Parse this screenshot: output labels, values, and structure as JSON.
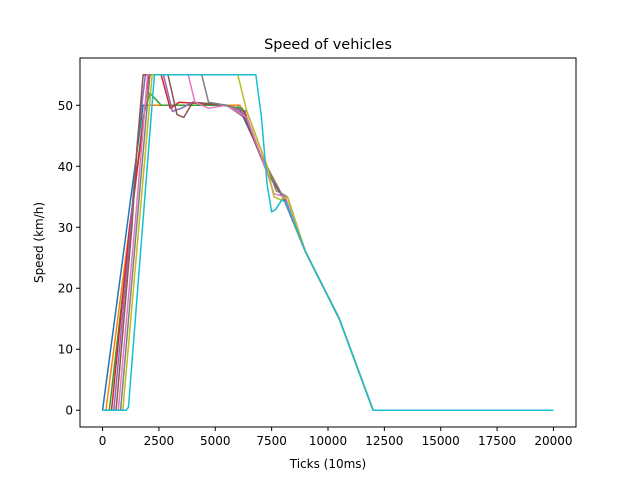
{
  "chart_data": {
    "type": "line",
    "title": "Speed of vehicles",
    "xlabel": "Ticks (10ms)",
    "ylabel": "Speed (km/h)",
    "xlim": [
      -1000,
      21000
    ],
    "ylim": [
      -2.75,
      57.75
    ],
    "xticks": [
      0,
      2500,
      5000,
      7500,
      10000,
      12500,
      15000,
      17500,
      20000
    ],
    "xtick_labels": [
      "0",
      "2500",
      "5000",
      "7500",
      "10000",
      "12500",
      "15000",
      "17500",
      "20000"
    ],
    "yticks": [
      0,
      10,
      20,
      30,
      40,
      50
    ],
    "ytick_labels": [
      "0",
      "10",
      "20",
      "30",
      "40",
      "50"
    ],
    "grid": false,
    "legend": "none",
    "series": [
      {
        "color": "#1f77b4",
        "points": [
          [
            0,
            0
          ],
          [
            1800,
            50
          ],
          [
            2300,
            50
          ],
          [
            5000,
            50
          ],
          [
            6000,
            50
          ],
          [
            7000,
            42
          ],
          [
            8000,
            35
          ],
          [
            9000,
            26
          ],
          [
            10500,
            15
          ],
          [
            12000,
            0
          ],
          [
            20000,
            0
          ]
        ]
      },
      {
        "color": "#ff7f0e",
        "points": [
          [
            0,
            0
          ],
          [
            150,
            0
          ],
          [
            1900,
            50
          ],
          [
            2600,
            50
          ],
          [
            5200,
            50
          ],
          [
            6100,
            50
          ],
          [
            7000,
            42
          ],
          [
            8000,
            35
          ],
          [
            9000,
            26
          ],
          [
            10500,
            15
          ],
          [
            12000,
            0
          ],
          [
            20000,
            0
          ]
        ]
      },
      {
        "color": "#2ca02c",
        "points": [
          [
            0,
            0
          ],
          [
            300,
            0
          ],
          [
            1800,
            48
          ],
          [
            2100,
            52
          ],
          [
            2600,
            50
          ],
          [
            5300,
            50
          ],
          [
            6200,
            49.5
          ],
          [
            7100,
            41
          ],
          [
            8000,
            35
          ],
          [
            9000,
            26
          ],
          [
            10500,
            15
          ],
          [
            12000,
            0
          ],
          [
            20000,
            0
          ]
        ]
      },
      {
        "color": "#d62728",
        "points": [
          [
            0,
            0
          ],
          [
            400,
            0
          ],
          [
            1200,
            30
          ],
          [
            1700,
            44
          ],
          [
            2050,
            55
          ],
          [
            2600,
            55
          ],
          [
            3000,
            49.5
          ],
          [
            3400,
            50.5
          ],
          [
            5500,
            50
          ],
          [
            6300,
            49
          ],
          [
            7200,
            40
          ],
          [
            8000,
            35
          ],
          [
            9000,
            26
          ],
          [
            10500,
            15
          ],
          [
            12000,
            0
          ],
          [
            20000,
            0
          ]
        ]
      },
      {
        "color": "#9467bd",
        "points": [
          [
            0,
            0
          ],
          [
            500,
            0
          ],
          [
            1200,
            28
          ],
          [
            1550,
            44
          ],
          [
            1900,
            55
          ],
          [
            2700,
            55
          ],
          [
            3100,
            49
          ],
          [
            3500,
            49.5
          ],
          [
            4000,
            50.5
          ],
          [
            5500,
            50
          ],
          [
            6300,
            48.5
          ],
          [
            7200,
            40
          ],
          [
            8000,
            35
          ],
          [
            9000,
            26
          ],
          [
            10500,
            15
          ],
          [
            12000,
            0
          ],
          [
            20000,
            0
          ]
        ]
      },
      {
        "color": "#8c564b",
        "points": [
          [
            0,
            0
          ],
          [
            600,
            0
          ],
          [
            1300,
            30
          ],
          [
            1550,
            44
          ],
          [
            1800,
            55
          ],
          [
            2900,
            55
          ],
          [
            3300,
            48.5
          ],
          [
            3600,
            48
          ],
          [
            4000,
            50.5
          ],
          [
            5500,
            50
          ],
          [
            6300,
            48
          ],
          [
            7300,
            39
          ],
          [
            7900,
            35.5
          ],
          [
            8100,
            34.5
          ],
          [
            9000,
            26
          ],
          [
            10500,
            15
          ],
          [
            12000,
            0
          ],
          [
            20000,
            0
          ]
        ]
      },
      {
        "color": "#e377c2",
        "points": [
          [
            0,
            0
          ],
          [
            700,
            0
          ],
          [
            1500,
            33
          ],
          [
            2000,
            55
          ],
          [
            3800,
            55
          ],
          [
            4100,
            50.5
          ],
          [
            4700,
            49.5
          ],
          [
            5500,
            50
          ],
          [
            6400,
            48
          ],
          [
            7300,
            39
          ],
          [
            7600,
            35.5
          ],
          [
            8100,
            35
          ],
          [
            9000,
            26
          ],
          [
            10500,
            15
          ],
          [
            12000,
            0
          ],
          [
            20000,
            0
          ]
        ]
      },
      {
        "color": "#7f7f7f",
        "points": [
          [
            0,
            0
          ],
          [
            800,
            0
          ],
          [
            2100,
            55
          ],
          [
            4400,
            55
          ],
          [
            4700,
            50.5
          ],
          [
            5500,
            50
          ],
          [
            6400,
            49
          ],
          [
            7300,
            40
          ],
          [
            7700,
            36
          ],
          [
            8200,
            35
          ],
          [
            9000,
            26
          ],
          [
            10500,
            15
          ],
          [
            12000,
            0
          ],
          [
            20000,
            0
          ]
        ]
      },
      {
        "color": "#bcbd22",
        "points": [
          [
            0,
            0
          ],
          [
            900,
            0
          ],
          [
            2200,
            55
          ],
          [
            6000,
            55
          ],
          [
            6400,
            49
          ],
          [
            7300,
            40
          ],
          [
            7600,
            35
          ],
          [
            7900,
            34.5
          ],
          [
            8200,
            35
          ],
          [
            9000,
            26
          ],
          [
            10500,
            15
          ],
          [
            12000,
            0
          ],
          [
            20000,
            0
          ]
        ]
      },
      {
        "color": "#17becf",
        "points": [
          [
            0,
            0
          ],
          [
            1050,
            0
          ],
          [
            1150,
            0.5
          ],
          [
            2300,
            55
          ],
          [
            6800,
            55
          ],
          [
            7050,
            48
          ],
          [
            7300,
            37
          ],
          [
            7500,
            32.5
          ],
          [
            7700,
            33
          ],
          [
            7950,
            34.5
          ],
          [
            8150,
            34
          ],
          [
            9000,
            26
          ],
          [
            10500,
            15
          ],
          [
            12000,
            0
          ],
          [
            20000,
            0
          ]
        ]
      }
    ]
  }
}
